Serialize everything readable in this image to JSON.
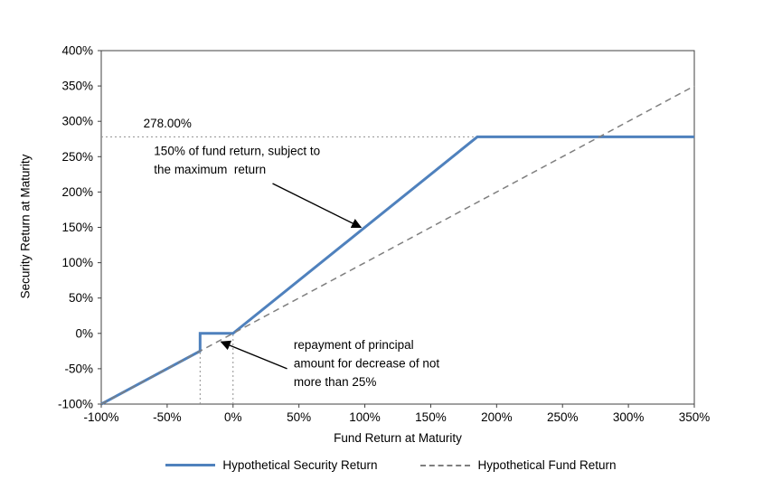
{
  "chart_data": {
    "type": "line",
    "title": "",
    "xlabel": "Fund Return at Maturity",
    "ylabel": "Security Return at Maturity",
    "xlim": [
      -100,
      350
    ],
    "ylim": [
      -100,
      400
    ],
    "x_ticks": [
      -100,
      -50,
      0,
      50,
      100,
      150,
      200,
      250,
      300,
      350
    ],
    "y_ticks": [
      -100,
      -50,
      0,
      50,
      100,
      150,
      200,
      250,
      300,
      350,
      400
    ],
    "tick_suffix": "%",
    "grid": false,
    "legend_position": "bottom",
    "series": [
      {
        "name": "Hypothetical Security Return",
        "color": "#4F81BD",
        "style": "solid",
        "width": 3,
        "points": [
          [
            -100,
            -100
          ],
          [
            -25,
            -25
          ],
          [
            -25,
            0
          ],
          [
            0,
            0
          ],
          [
            185.33,
            278
          ],
          [
            350,
            278
          ]
        ]
      },
      {
        "name": "Hypothetical Fund Return",
        "color": "#7F7F7F",
        "style": "dashed",
        "width": 1.5,
        "points": [
          [
            -100,
            -100
          ],
          [
            350,
            350
          ]
        ]
      }
    ],
    "reference_lines": [
      {
        "type": "horizontal",
        "y": 278,
        "from_x": -100,
        "to_x": 350,
        "style": "dotted",
        "color": "#909090"
      },
      {
        "type": "vertical",
        "x": -25,
        "from_y": -100,
        "to_y": 0,
        "style": "dotted",
        "color": "#909090"
      },
      {
        "type": "vertical",
        "x": 0,
        "from_y": -100,
        "to_y": 0,
        "style": "dotted",
        "color": "#909090"
      }
    ],
    "annotations": [
      {
        "id": "max-return-label",
        "lines": [
          "278.00%"
        ],
        "x": -68,
        "y": 291
      },
      {
        "id": "participation-note",
        "lines": [
          "150% of fund return, subject to",
          "the maximum  return"
        ],
        "x": -60,
        "y": 252,
        "arrow": {
          "from": [
            30,
            212
          ],
          "to": [
            97,
            150
          ]
        }
      },
      {
        "id": "principal-note",
        "lines": [
          "repayment of principal",
          "amount for decrease of not",
          "more than 25%"
        ],
        "x": 46,
        "y": -22,
        "arrow": {
          "from": [
            41,
            -50
          ],
          "to": [
            -9,
            -12
          ]
        }
      }
    ],
    "legend": [
      {
        "label": "Hypothetical Security Return",
        "color": "#4F81BD",
        "style": "solid"
      },
      {
        "label": "Hypothetical Fund Return",
        "color": "#7F7F7F",
        "style": "dashed"
      }
    ],
    "max_security_return_pct": 278.0,
    "participation_rate_pct": 150,
    "principal_buffer_pct": 25
  }
}
